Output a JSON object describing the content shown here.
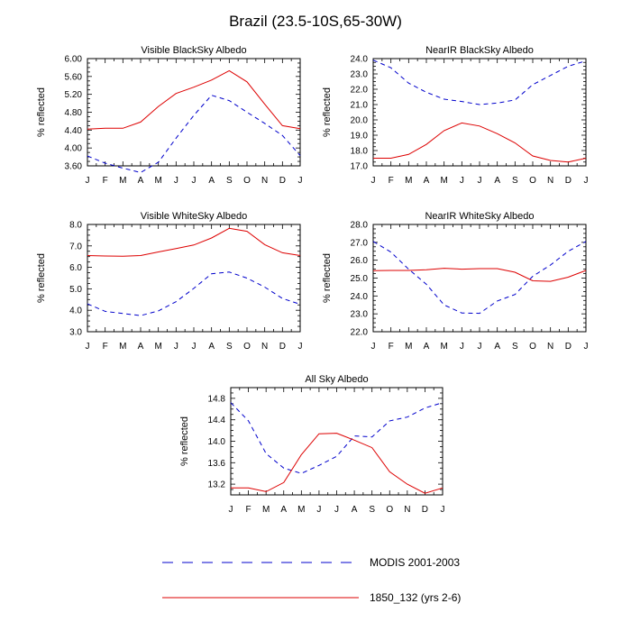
{
  "figure": {
    "title": "Brazil (23.5-10S,65-30W)",
    "colors": {
      "modis": "#0000cc",
      "model": "#dd0000"
    },
    "legend": [
      {
        "label": "MODIS 2001-2003",
        "style": "dashed",
        "color": "#0000cc"
      },
      {
        "label": "1850_132 (yrs 2-6)",
        "style": "solid",
        "color": "#dd0000"
      }
    ]
  },
  "chart_data": [
    {
      "type": "line",
      "title": "Visible BlackSky Albedo",
      "ylabel": "% reflected",
      "categories": [
        "J",
        "F",
        "M",
        "A",
        "M",
        "J",
        "J",
        "A",
        "S",
        "O",
        "N",
        "D",
        "J"
      ],
      "ylim": [
        3.6,
        6.0
      ],
      "yticks": [
        "3.60",
        "4.00",
        "4.40",
        "4.80",
        "5.20",
        "5.60",
        "6.00"
      ],
      "series": [
        {
          "name": "MODIS 2001-2003",
          "values": [
            3.82,
            3.66,
            3.55,
            3.45,
            3.68,
            4.22,
            4.73,
            5.18,
            5.06,
            4.8,
            4.55,
            4.28,
            3.83
          ]
        },
        {
          "name": "1850_132 (yrs 2-6)",
          "values": [
            4.42,
            4.44,
            4.44,
            4.58,
            4.93,
            5.22,
            5.36,
            5.52,
            5.73,
            5.48,
            4.98,
            4.5,
            4.43
          ]
        }
      ]
    },
    {
      "type": "line",
      "title": "NearIR BlackSky Albedo",
      "ylabel": "% reflected",
      "categories": [
        "J",
        "F",
        "M",
        "A",
        "M",
        "J",
        "J",
        "A",
        "S",
        "O",
        "N",
        "D",
        "J"
      ],
      "ylim": [
        17.0,
        24.0
      ],
      "yticks": [
        "17.0",
        "18.0",
        "19.0",
        "20.0",
        "21.0",
        "22.0",
        "23.0",
        "24.0"
      ],
      "series": [
        {
          "name": "MODIS 2001-2003",
          "values": [
            23.9,
            23.4,
            22.4,
            21.8,
            21.35,
            21.2,
            21.0,
            21.1,
            21.3,
            22.3,
            22.9,
            23.5,
            23.85
          ]
        },
        {
          "name": "1850_132 (yrs 2-6)",
          "values": [
            17.5,
            17.5,
            17.75,
            18.4,
            19.3,
            19.8,
            19.6,
            19.1,
            18.5,
            17.65,
            17.35,
            17.25,
            17.5
          ]
        }
      ]
    },
    {
      "type": "line",
      "title": "Visible WhiteSky Albedo",
      "ylabel": "% reflected",
      "categories": [
        "J",
        "F",
        "M",
        "A",
        "M",
        "J",
        "J",
        "A",
        "S",
        "O",
        "N",
        "D",
        "J"
      ],
      "ylim": [
        3.0,
        8.0
      ],
      "yticks": [
        "3.0",
        "4.0",
        "5.0",
        "6.0",
        "7.0",
        "8.0"
      ],
      "series": [
        {
          "name": "MODIS 2001-2003",
          "values": [
            4.3,
            3.95,
            3.85,
            3.75,
            3.97,
            4.4,
            5.02,
            5.7,
            5.78,
            5.5,
            5.08,
            4.55,
            4.28
          ]
        },
        {
          "name": "1850_132 (yrs 2-6)",
          "values": [
            6.55,
            6.53,
            6.52,
            6.55,
            6.72,
            6.88,
            7.04,
            7.37,
            7.82,
            7.68,
            7.06,
            6.68,
            6.55
          ]
        }
      ]
    },
    {
      "type": "line",
      "title": "NearIR WhiteSky Albedo",
      "ylabel": "% reflected",
      "categories": [
        "J",
        "F",
        "M",
        "A",
        "M",
        "J",
        "J",
        "A",
        "S",
        "O",
        "N",
        "D",
        "J"
      ],
      "ylim": [
        22.0,
        28.0
      ],
      "yticks": [
        "22.0",
        "23.0",
        "24.0",
        "25.0",
        "26.0",
        "27.0",
        "28.0"
      ],
      "series": [
        {
          "name": "MODIS 2001-2003",
          "values": [
            27.05,
            26.45,
            25.5,
            24.65,
            23.5,
            23.05,
            23.03,
            23.72,
            24.08,
            25.1,
            25.73,
            26.5,
            27.05
          ]
        },
        {
          "name": "1850_132 (yrs 2-6)",
          "values": [
            25.42,
            25.43,
            25.43,
            25.47,
            25.55,
            25.5,
            25.53,
            25.53,
            25.33,
            24.85,
            24.82,
            25.05,
            25.43
          ]
        }
      ]
    },
    {
      "type": "line",
      "title": "All Sky Albedo",
      "ylabel": "% reflected",
      "categories": [
        "J",
        "F",
        "M",
        "A",
        "M",
        "J",
        "J",
        "A",
        "S",
        "O",
        "N",
        "D",
        "J"
      ],
      "ylim": [
        13.0,
        15.0
      ],
      "yticks": [
        "13.2",
        "13.6",
        "14.0",
        "14.4",
        "14.8"
      ],
      "series": [
        {
          "name": "MODIS 2001-2003",
          "values": [
            14.72,
            14.38,
            13.77,
            13.5,
            13.4,
            13.55,
            13.72,
            14.1,
            14.08,
            14.38,
            14.45,
            14.62,
            14.72
          ]
        },
        {
          "name": "1850_132 (yrs 2-6)",
          "values": [
            13.13,
            13.13,
            13.06,
            13.23,
            13.75,
            14.14,
            14.15,
            14.02,
            13.88,
            13.43,
            13.2,
            13.03,
            13.13
          ]
        }
      ]
    }
  ]
}
